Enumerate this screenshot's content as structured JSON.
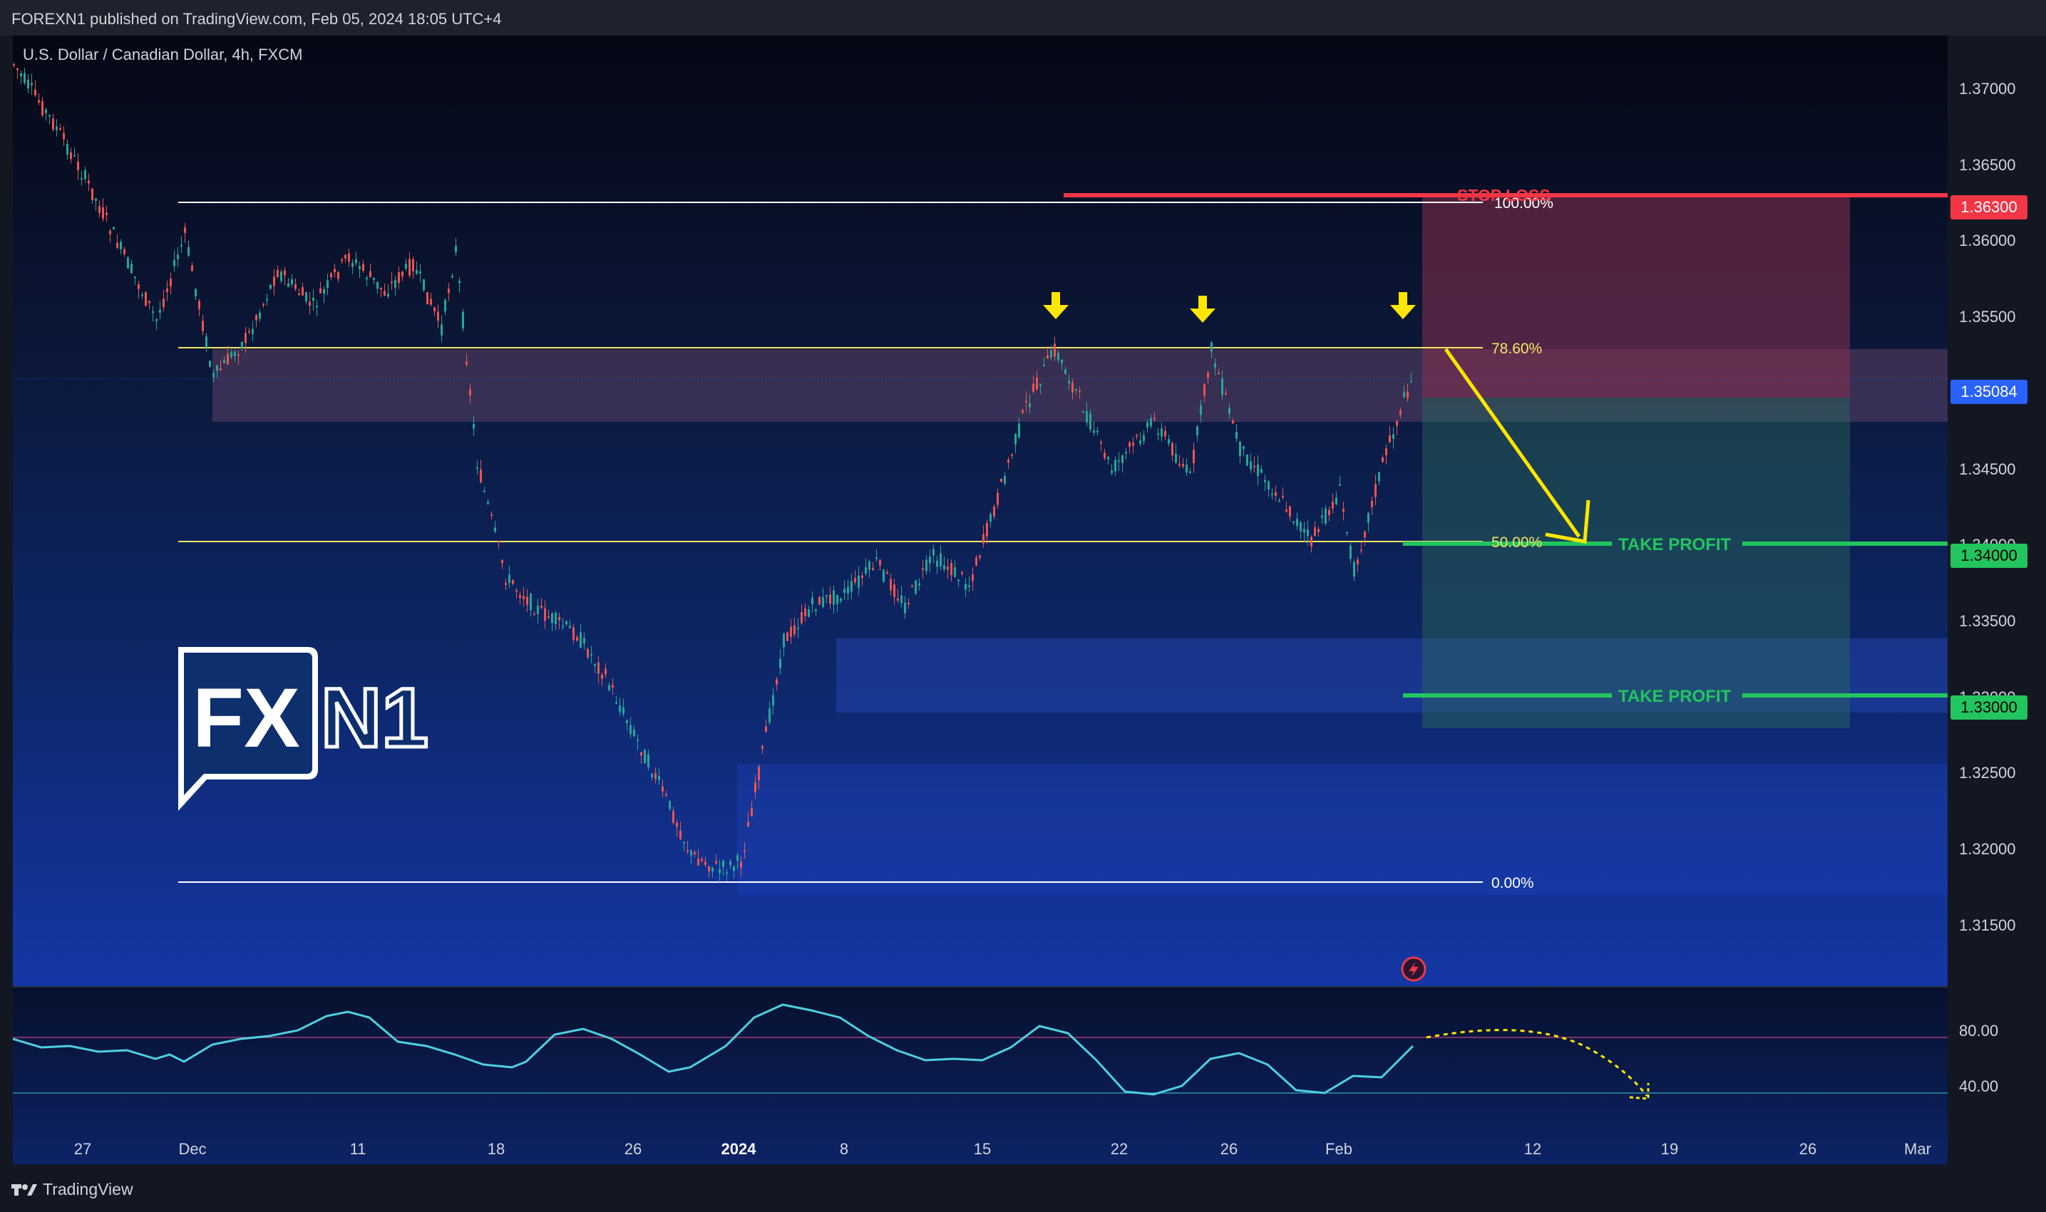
{
  "publisher": "FOREXN1 published on TradingView.com, Feb 05, 2024 18:05 UTC+4",
  "symbol": "U.S. Dollar / Canadian Dollar, 4h, FXCM",
  "logo_text": "FXN1",
  "brand": "TradingView",
  "price_axis": [
    "1.37000",
    "1.36500",
    "1.36000",
    "1.35500",
    "1.35000",
    "1.34500",
    "1.34000",
    "1.33500",
    "1.33000",
    "1.32500",
    "1.32000",
    "1.31500"
  ],
  "price_labels": [
    {
      "text": "1.36300",
      "bg": "#f23645",
      "fg": "#ffffff"
    },
    {
      "text": "1.35084",
      "bg": "#2962ff",
      "fg": "#ffffff"
    },
    {
      "text": "1.34000",
      "bg": "#22c55e",
      "fg": "#000000"
    },
    {
      "text": "1.33000",
      "bg": "#22c55e",
      "fg": "#000000"
    }
  ],
  "fib_labels": {
    "level_100": "100.00%",
    "level_786": "78.60%",
    "level_50": "50.00%",
    "level_0": "0.00%"
  },
  "trade": {
    "stop_loss": "STOP LOSS",
    "take_profit_1": "TAKE PROFIT",
    "take_profit_2": "TAKE PROFIT"
  },
  "osc_axis": [
    "80.00",
    "40.00"
  ],
  "time_axis": [
    "27",
    "Dec",
    "11",
    "18",
    "26",
    "2024",
    "8",
    "15",
    "22",
    "26",
    "Feb",
    "12",
    "19",
    "26",
    "Mar"
  ],
  "colors": {
    "up": "#26a69a",
    "down": "#ef5350",
    "fib_yellow": "#f5e663",
    "stop_red": "#f23645",
    "tp_green": "#22c55e",
    "osc_line": "#4dd0e1",
    "arrow": "#ffe600"
  },
  "icons": [
    "down-arrow-icon",
    "lightning-icon",
    "tradingview-logo-icon"
  ]
}
